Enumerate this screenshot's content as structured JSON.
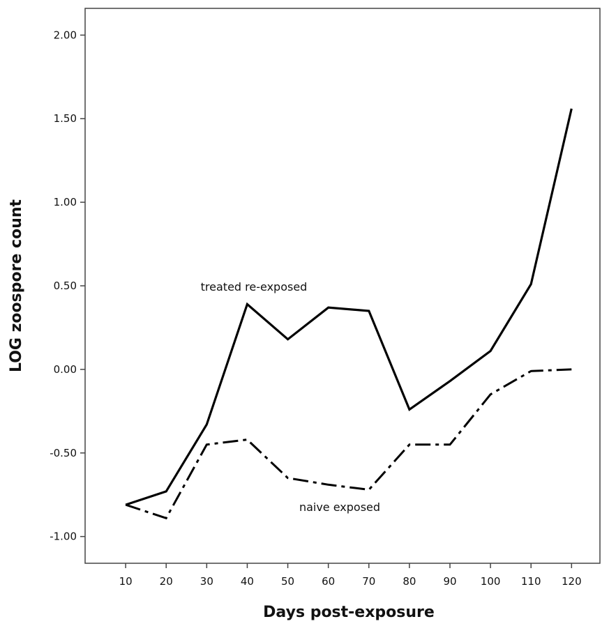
{
  "chart_data": {
    "type": "line",
    "xlabel": "Days post-exposure",
    "ylabel": "LOG zoospore count",
    "x": [
      10,
      20,
      30,
      40,
      50,
      60,
      70,
      80,
      90,
      100,
      110,
      120
    ],
    "x_tick_labels": [
      "10",
      "20",
      "30",
      "40",
      "50",
      "60",
      "70",
      "80",
      "90",
      "100",
      "110",
      "120"
    ],
    "y_ticks": [
      -1.0,
      -0.5,
      0.0,
      0.5,
      1.0,
      1.5,
      2.0
    ],
    "y_tick_labels": [
      "-1.00",
      "-0.50",
      "0.00",
      "0.50",
      "1.00",
      "1.50",
      "2.00"
    ],
    "xlim": [
      0,
      127
    ],
    "ylim": [
      -1.16,
      2.16
    ],
    "grid": false,
    "legend": "none",
    "series": [
      {
        "name": "treated re-exposed",
        "style": "solid",
        "values": [
          -0.81,
          -0.73,
          -0.33,
          0.39,
          0.18,
          0.37,
          0.35,
          -0.24,
          -0.07,
          0.11,
          0.51,
          1.56
        ]
      },
      {
        "name": "naive exposed",
        "style": "dash-dot",
        "values": [
          -0.81,
          -0.89,
          -0.45,
          -0.42,
          -0.65,
          -0.69,
          -0.72,
          -0.45,
          -0.45,
          -0.15,
          -0.01,
          0.0
        ]
      }
    ],
    "annotations": [
      {
        "text": "treated re-exposed",
        "series": 0
      },
      {
        "text": "naive exposed",
        "series": 1
      }
    ]
  },
  "colors": {
    "line": "#000000",
    "axis": "#444444",
    "background": "#ffffff"
  }
}
